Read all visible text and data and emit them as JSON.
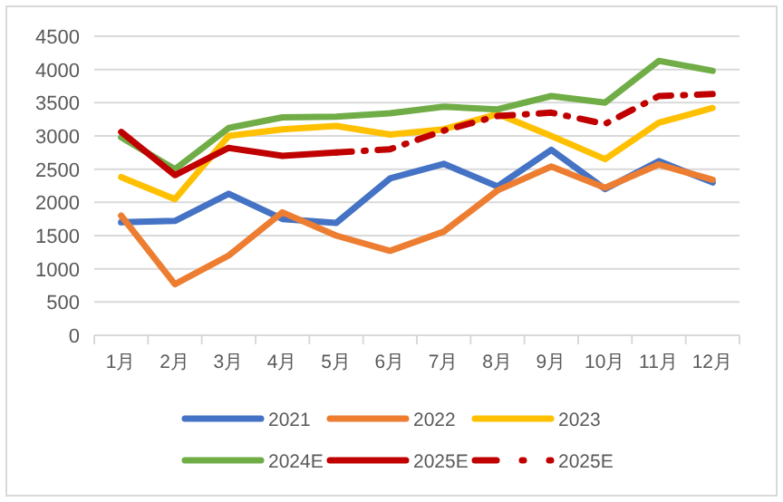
{
  "chart_data": {
    "type": "line",
    "categories": [
      "1月",
      "2月",
      "3月",
      "4月",
      "5月",
      "6月",
      "7月",
      "8月",
      "9月",
      "10月",
      "11月",
      "12月"
    ],
    "series": [
      {
        "name": "2021",
        "color": "#4472c4",
        "values": [
          1700,
          1720,
          2130,
          1750,
          1690,
          2360,
          2580,
          2240,
          2790,
          2200,
          2620,
          2300
        ]
      },
      {
        "name": "2022",
        "color": "#ed7d31",
        "values": [
          1800,
          770,
          1200,
          1850,
          1500,
          1270,
          1560,
          2180,
          2540,
          2220,
          2570,
          2340
        ]
      },
      {
        "name": "2023",
        "color": "#ffc000",
        "values": [
          2380,
          2050,
          3000,
          3100,
          3150,
          3020,
          3100,
          3330,
          3000,
          2650,
          3200,
          3420
        ]
      },
      {
        "name": "2024E",
        "color": "#70ad47",
        "values": [
          2980,
          2500,
          3120,
          3280,
          3290,
          3340,
          3440,
          3400,
          3600,
          3500,
          4130,
          3980
        ]
      },
      {
        "name": "2025E",
        "color": "#c00000",
        "values": [
          3060,
          2410,
          2820,
          2700,
          2750,
          null,
          null,
          null,
          null,
          null,
          null,
          null
        ]
      },
      {
        "name": "2025E",
        "color": "#c00000",
        "line_style": "dashed",
        "values": [
          null,
          null,
          null,
          null,
          2750,
          2800,
          3080,
          3300,
          3350,
          3180,
          3600,
          3630
        ]
      }
    ],
    "ylim": [
      0,
      4500
    ],
    "yticks": [
      0,
      500,
      1000,
      1500,
      2000,
      2500,
      3000,
      3500,
      4000,
      4500
    ],
    "grid": "y",
    "legend": "bottom",
    "marker": "none",
    "line_style": "solid"
  }
}
